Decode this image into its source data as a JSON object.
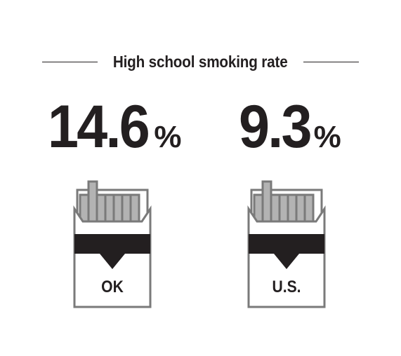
{
  "title": "High school smoking rate",
  "stats": [
    {
      "value": "14.6",
      "unit": "%",
      "label": "OK"
    },
    {
      "value": "9.3",
      "unit": "%",
      "label": "U.S."
    }
  ],
  "colors": {
    "ink": "#231f20",
    "cigarette_gray": "#b3b3b3",
    "outline_gray": "#7a7a7a"
  },
  "icons": [
    "cigarette-pack-icon",
    "cigarette-pack-icon"
  ]
}
